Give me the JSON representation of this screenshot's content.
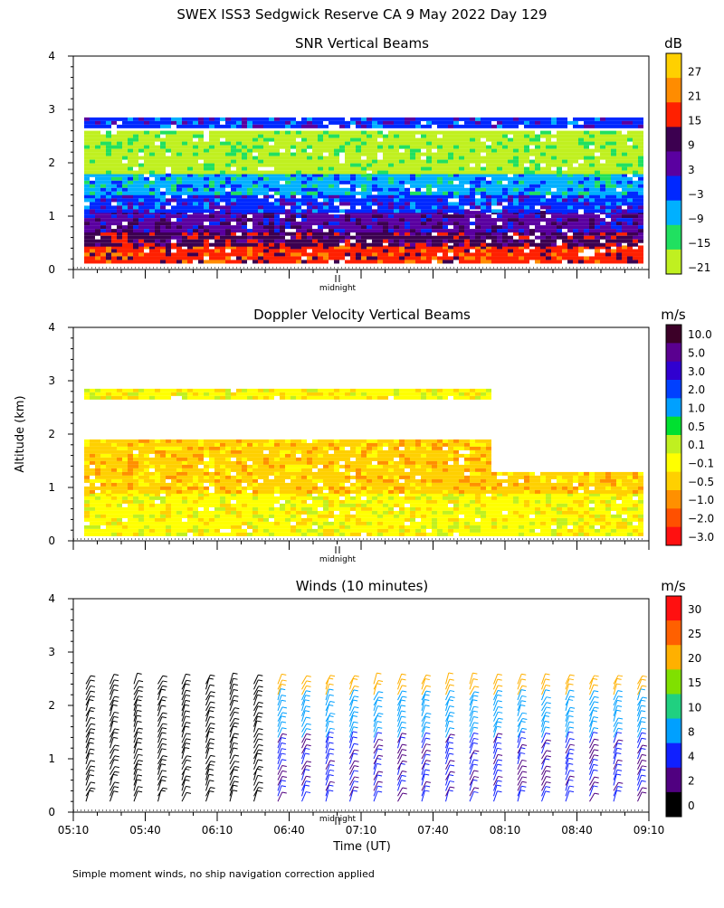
{
  "title": "SWEX ISS3 Sedgwick Reserve CA   9 May 2022 Day 129",
  "y_axis_label": "Altitude (km)",
  "x_axis_label": "Time (UT)",
  "footnote": "Simple moment winds, no ship navigation correction applied",
  "midnight_label": "midnight",
  "chart_data": [
    {
      "id": "snr",
      "type": "heatmap",
      "title": "SNR Vertical Beams",
      "ylabel": "Altitude (km)",
      "ylim": [
        0,
        4
      ],
      "yticks": [
        "0",
        "1",
        "2",
        "3",
        "4"
      ],
      "colorbar_unit": "dB",
      "colorbar_labels": [
        "27",
        "21",
        "15",
        "9",
        "3",
        "−3",
        "−9",
        "−15",
        "−21"
      ],
      "colorbar_colors": [
        "#ffd000",
        "#ff8c00",
        "#ff2000",
        "#3c0050",
        "#5a00a0",
        "#0028ff",
        "#00b0ff",
        "#20e060",
        "#c0f020"
      ],
      "layers": [
        {
          "alt": [
            0.15,
            0.45
          ],
          "level": 15
        },
        {
          "alt": [
            0.45,
            0.7
          ],
          "level": 9
        },
        {
          "alt": [
            0.7,
            1.1
          ],
          "level": 3
        },
        {
          "alt": [
            1.1,
            1.4
          ],
          "level": -3
        },
        {
          "alt": [
            1.4,
            1.8
          ],
          "level": -9
        },
        {
          "alt": [
            1.8,
            2.6
          ],
          "level": -21
        },
        {
          "alt": [
            2.7,
            2.85
          ],
          "level": -3
        }
      ]
    },
    {
      "id": "doppler",
      "type": "heatmap",
      "title": "Doppler Velocity Vertical Beams",
      "ylabel": "Altitude (km)",
      "ylim": [
        0,
        4
      ],
      "yticks": [
        "0",
        "1",
        "2",
        "3",
        "4"
      ],
      "colorbar_unit": "m/s",
      "colorbar_labels": [
        "10.0",
        "5.0",
        "3.0",
        "2.0",
        "1.0",
        "0.5",
        "0.1",
        "−0.1",
        "−0.5",
        "−1.0",
        "−2.0",
        "−3.0"
      ],
      "colorbar_colors": [
        "#3c0028",
        "#5a0090",
        "#3000d0",
        "#0040ff",
        "#00a0ff",
        "#00e030",
        "#c0f020",
        "#ffff00",
        "#ffd000",
        "#ff9000",
        "#ff5000",
        "#ff1010"
      ],
      "layers": [
        {
          "alt": [
            0.1,
            0.9
          ],
          "level": -0.1
        },
        {
          "alt": [
            0.9,
            1.9
          ],
          "level": -0.5
        },
        {
          "alt": [
            2.7,
            2.85
          ],
          "level": -0.1
        }
      ]
    },
    {
      "id": "winds",
      "type": "scatter",
      "title": "Winds (10 minutes)",
      "ylabel": "Altitude (km)",
      "xlabel": "Time (UT)",
      "ylim": [
        0,
        4
      ],
      "yticks": [
        "0",
        "1",
        "2",
        "3",
        "4"
      ],
      "xtick_labels": [
        "05:10",
        "05:40",
        "06:10",
        "06:40",
        "07:10",
        "07:40",
        "08:10",
        "08:40",
        "09:10"
      ],
      "colorbar_unit": "m/s",
      "colorbar_labels": [
        "30",
        "25",
        "20",
        "15",
        "10",
        "8",
        "4",
        "2",
        "0"
      ],
      "colorbar_colors": [
        "#ff1010",
        "#ff6000",
        "#ffb000",
        "#80e000",
        "#20d080",
        "#00a0ff",
        "#1020ff",
        "#500080",
        "#000000"
      ],
      "profile_times": [
        "05:10",
        "05:20",
        "05:30",
        "05:40",
        "05:50",
        "06:00",
        "06:10",
        "06:20",
        "06:30",
        "06:40",
        "06:50",
        "07:00",
        "07:10",
        "07:20",
        "07:30",
        "07:40",
        "07:50",
        "08:00",
        "08:10",
        "08:20",
        "08:30",
        "08:40",
        "08:50",
        "09:00"
      ]
    }
  ]
}
